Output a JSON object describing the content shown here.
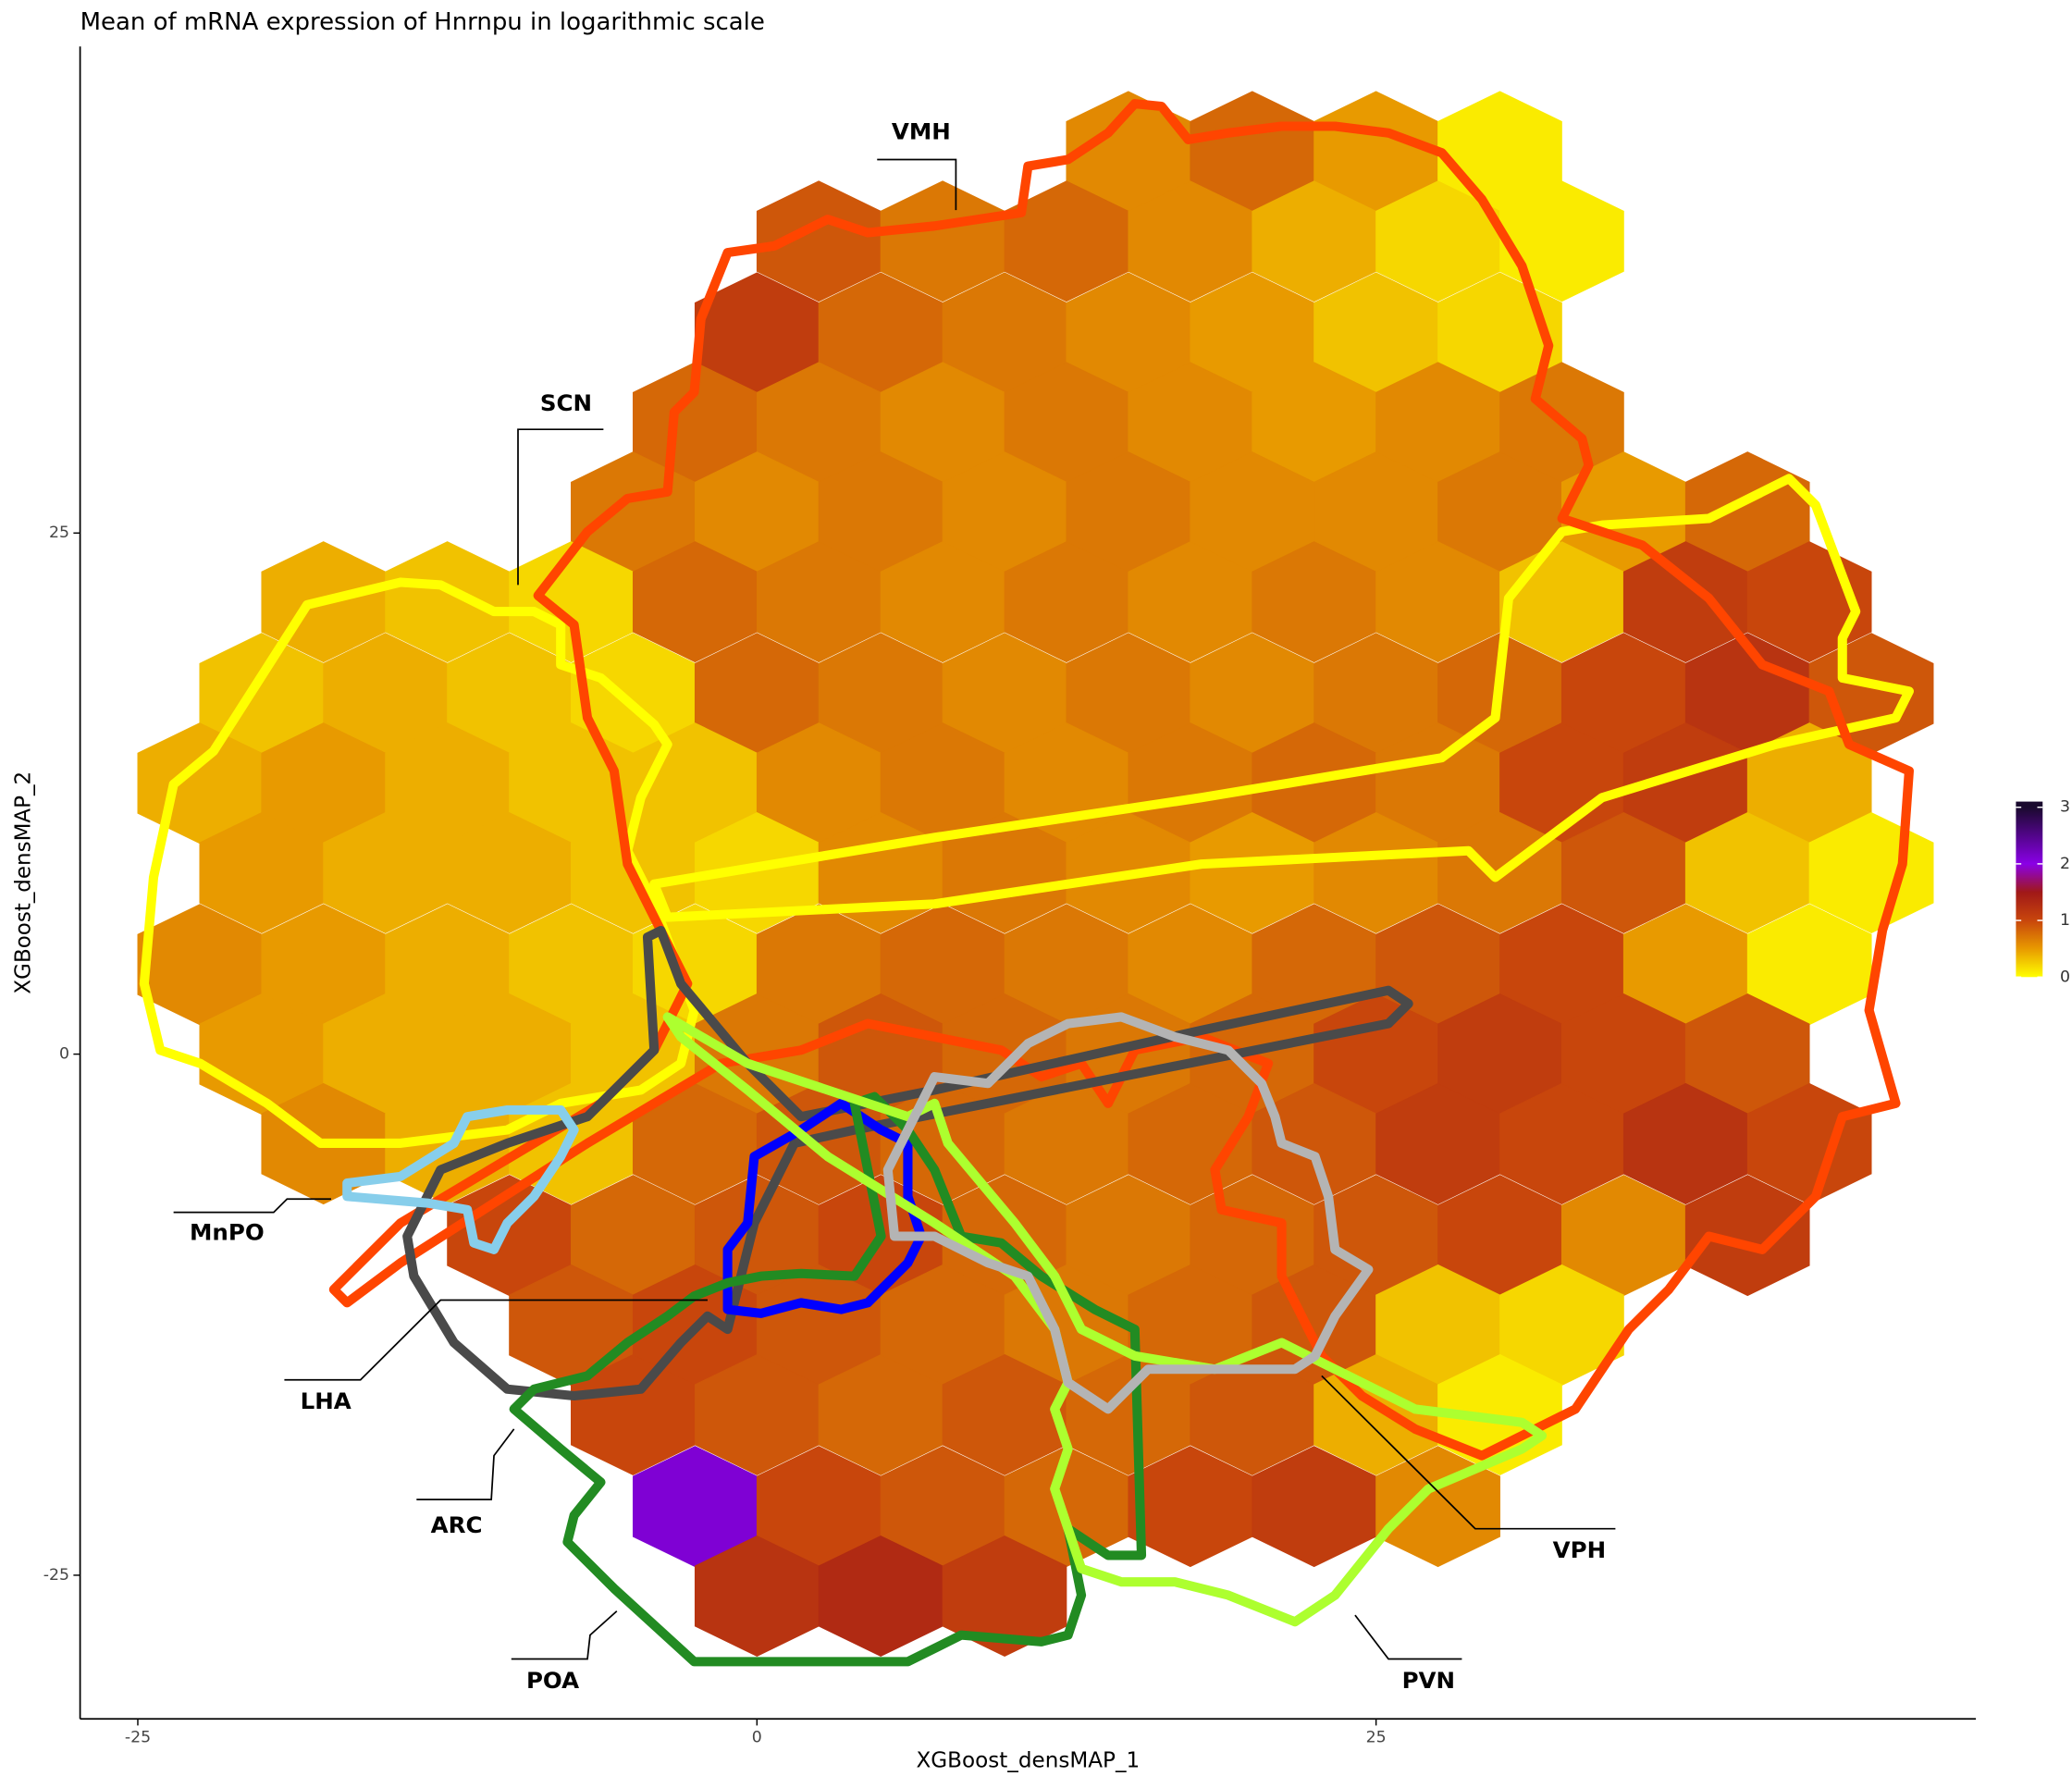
{
  "chart_data": {
    "type": "hexbin",
    "title": "Mean of mRNA expression of Hnrnpu in logarithmic scale",
    "xlabel": "XGBoost_densMAP_1",
    "ylabel": "XGBoost_densMAP_2",
    "xlim": [
      -27.33,
      49.22
    ],
    "ylim": [
      -31.89,
      48.34
    ],
    "xticks": [
      -25,
      0,
      25
    ],
    "yticks": [
      -25,
      0,
      25
    ],
    "colorbar": {
      "lim": [
        0,
        3.1
      ],
      "ticks": [
        0,
        1,
        2,
        3
      ]
    },
    "colorscale": [
      {
        "value": 0,
        "color": "#ffff00"
      },
      {
        "value": 0.5,
        "color": "#e89a00"
      },
      {
        "value": 1,
        "color": "#c8460c"
      },
      {
        "value": 1.5,
        "color": "#a01818"
      },
      {
        "value": 2,
        "color": "#8a00e6"
      },
      {
        "value": 3,
        "color": "#1a0a2e"
      }
    ],
    "regions": [
      "VMH",
      "SCN",
      "MnPO",
      "LHA",
      "ARC",
      "POA",
      "PVN",
      "VPH"
    ],
    "hexes": {
      "x": [
        15,
        20,
        25,
        30,
        2.5,
        7.5,
        12.5,
        17.5,
        22.5,
        27.5,
        32.5,
        0,
        5,
        10,
        15,
        20,
        25,
        30,
        -2.5,
        2.5,
        7.5,
        12.5,
        17.5,
        22.5,
        27.5,
        32.5,
        -5,
        0,
        5,
        10,
        15,
        20,
        25,
        30,
        35,
        40,
        -17.5,
        -12.5,
        -7.5,
        -2.5,
        2.5,
        7.5,
        12.5,
        17.5,
        22.5,
        27.5,
        32.5,
        37.5,
        42.5,
        -20,
        -15,
        -10,
        -5,
        0,
        5,
        10,
        15,
        20,
        25,
        30,
        35,
        40,
        45,
        -22.5,
        -17.5,
        -12.5,
        -7.5,
        -2.5,
        2.5,
        7.5,
        12.5,
        17.5,
        22.5,
        27.5,
        32.5,
        37.5,
        42.5,
        -20,
        -15,
        -10,
        -5,
        0,
        5,
        10,
        15,
        20,
        25,
        30,
        35,
        40,
        45,
        -22.5,
        -17.5,
        -12.5,
        -7.5,
        -2.5,
        2.5,
        7.5,
        12.5,
        17.5,
        22.5,
        27.5,
        32.5,
        37.5,
        42.5,
        -20,
        -15,
        -10,
        -5,
        0,
        5,
        10,
        15,
        20,
        25,
        30,
        35,
        40,
        -17.5,
        -12.5,
        -7.5,
        -2.5,
        2.5,
        7.5,
        12.5,
        17.5,
        22.5,
        27.5,
        32.5,
        37.5,
        42.5,
        -10,
        -5,
        0,
        5,
        10,
        15,
        20,
        25,
        30,
        35,
        40,
        -7.5,
        -2.5,
        2.5,
        7.5,
        12.5,
        17.5,
        22.5,
        27.5,
        32.5,
        -5,
        0,
        5,
        10,
        15,
        20,
        25,
        30,
        -2.5,
        2.5,
        7.5,
        12.5,
        17.5,
        22.5,
        27.5,
        0,
        5,
        10
      ],
      "y": [
        43.3,
        43.3,
        43.3,
        43.3,
        39,
        39,
        39,
        39,
        39,
        39,
        39,
        34.6,
        34.6,
        34.6,
        34.6,
        34.6,
        34.6,
        34.6,
        30.3,
        30.3,
        30.3,
        30.3,
        30.3,
        30.3,
        30.3,
        30.3,
        26,
        26,
        26,
        26,
        26,
        26,
        26,
        26,
        26,
        26,
        21.7,
        21.7,
        21.7,
        21.7,
        21.7,
        21.7,
        21.7,
        21.7,
        21.7,
        21.7,
        21.7,
        21.7,
        21.7,
        17.3,
        17.3,
        17.3,
        17.3,
        17.3,
        17.3,
        17.3,
        17.3,
        17.3,
        17.3,
        17.3,
        17.3,
        17.3,
        17.3,
        13,
        13,
        13,
        13,
        13,
        13,
        13,
        13,
        13,
        13,
        13,
        13,
        13,
        13,
        8.7,
        8.7,
        8.7,
        8.7,
        8.7,
        8.7,
        8.7,
        8.7,
        8.7,
        8.7,
        8.7,
        8.7,
        8.7,
        8.7,
        4.3,
        4.3,
        4.3,
        4.3,
        4.3,
        4.3,
        4.3,
        4.3,
        4.3,
        4.3,
        4.3,
        4.3,
        4.3,
        4.3,
        0,
        0,
        0,
        0,
        0,
        0,
        0,
        0,
        0,
        0,
        0,
        0,
        0,
        -4.3,
        -4.3,
        -4.3,
        -4.3,
        -4.3,
        -4.3,
        -4.3,
        -4.3,
        -4.3,
        -4.3,
        -4.3,
        -4.3,
        -4.3,
        -8.7,
        -8.7,
        -8.7,
        -8.7,
        -8.7,
        -8.7,
        -8.7,
        -8.7,
        -8.7,
        -8.7,
        -8.7,
        -13,
        -13,
        -13,
        -13,
        -13,
        -13,
        -13,
        -13,
        -13,
        -17.3,
        -17.3,
        -17.3,
        -17.3,
        -17.3,
        -17.3,
        -17.3,
        -17.3,
        -21.7,
        -21.7,
        -21.7,
        -21.7,
        -21.7,
        -21.7,
        -21.7,
        -26,
        -26,
        -26
      ],
      "values": [
        0.6,
        0.8,
        0.5,
        0.1,
        0.9,
        0.7,
        0.8,
        0.6,
        0.4,
        0.2,
        0.1,
        1.1,
        0.8,
        0.7,
        0.6,
        0.5,
        0.3,
        0.2,
        0.8,
        0.7,
        0.6,
        0.7,
        0.6,
        0.5,
        0.6,
        0.7,
        0.7,
        0.6,
        0.7,
        0.6,
        0.7,
        0.6,
        0.6,
        0.7,
        0.5,
        0.8,
        0.4,
        0.3,
        0.2,
        0.8,
        0.7,
        0.6,
        0.7,
        0.6,
        0.7,
        0.6,
        0.3,
        1.1,
        1.0,
        0.3,
        0.4,
        0.3,
        0.2,
        0.8,
        0.7,
        0.6,
        0.7,
        0.6,
        0.7,
        0.8,
        1.0,
        1.2,
        0.9,
        0.4,
        0.5,
        0.4,
        0.3,
        0.3,
        0.6,
        0.7,
        0.6,
        0.7,
        0.8,
        0.7,
        1.0,
        1.1,
        0.4,
        0.5,
        0.4,
        0.4,
        0.3,
        0.2,
        0.6,
        0.7,
        0.6,
        0.5,
        0.6,
        0.7,
        0.9,
        0.3,
        0.1,
        0.6,
        0.5,
        0.4,
        0.3,
        0.2,
        0.7,
        0.8,
        0.7,
        0.6,
        0.8,
        0.9,
        1.0,
        0.5,
        0.1,
        0.5,
        0.4,
        0.4,
        0.3,
        0.7,
        0.9,
        0.8,
        0.7,
        0.8,
        1.0,
        1.1,
        1.0,
        0.9,
        0.6,
        0.4,
        0.3,
        0.8,
        0.9,
        0.8,
        0.7,
        0.8,
        0.9,
        1.1,
        1.0,
        1.2,
        1.0,
        1.0,
        0.8,
        0.9,
        1.0,
        0.8,
        0.7,
        0.8,
        0.9,
        1.0,
        0.6,
        1.1,
        0.9,
        1.0,
        0.9,
        0.8,
        0.7,
        0.8,
        0.9,
        0.3,
        0.2,
        1.0,
        0.9,
        0.8,
        0.9,
        0.8,
        0.9,
        0.4,
        0.1,
        2.1,
        1.0,
        0.9,
        0.8,
        1.0,
        1.1,
        0.6,
        1.2,
        1.3,
        1.1
      ]
    }
  }
}
